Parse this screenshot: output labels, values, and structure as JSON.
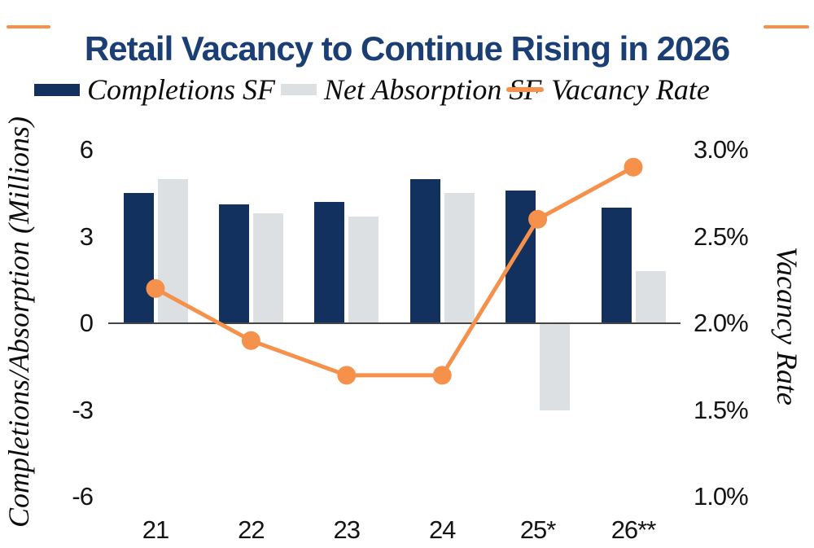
{
  "title": "Retail Vacancy to Continue Rising in 2026",
  "legend": {
    "completions": "Completions SF",
    "net_absorption": "Net Absorption SF",
    "vacancy": "Vacancy Rate"
  },
  "colors": {
    "navy": "#12315e",
    "gray": "#dde0e3",
    "orange": "#f5914b",
    "title-navy": "#1b3e75",
    "axis-line": "#454545"
  },
  "chart_data": {
    "type": "bar+line combo",
    "categories": [
      "21",
      "22",
      "23",
      "24",
      "25*",
      "26**"
    ],
    "series": [
      {
        "name": "Completions SF",
        "type": "bar",
        "axis": "left",
        "unit": "millions SF",
        "values": [
          4.5,
          4.1,
          4.2,
          5.0,
          4.6,
          4.0
        ]
      },
      {
        "name": "Net Absorption SF",
        "type": "bar",
        "axis": "left",
        "unit": "millions SF",
        "values": [
          5.0,
          3.8,
          3.7,
          4.5,
          -3.0,
          1.8
        ]
      },
      {
        "name": "Vacancy Rate",
        "type": "line",
        "axis": "right",
        "unit": "%",
        "values": [
          2.2,
          1.9,
          1.7,
          1.7,
          2.6,
          2.9
        ]
      }
    ],
    "left_axis": {
      "title": "Completions/Absorption (Millions)",
      "tick_labels": [
        "6",
        "3",
        "0",
        "-3",
        "-6"
      ],
      "tick_values": [
        6,
        3,
        0,
        -3,
        -6
      ],
      "range": [
        -6,
        6
      ]
    },
    "right_axis": {
      "title": "Vacancy Rate",
      "tick_labels": [
        "3.0%",
        "2.5%",
        "2.0%",
        "1.5%",
        "1.0%"
      ],
      "tick_values": [
        3.0,
        2.5,
        2.0,
        1.5,
        1.0
      ],
      "range": [
        1.0,
        3.0
      ]
    },
    "grid": false,
    "legend_position": "top"
  }
}
